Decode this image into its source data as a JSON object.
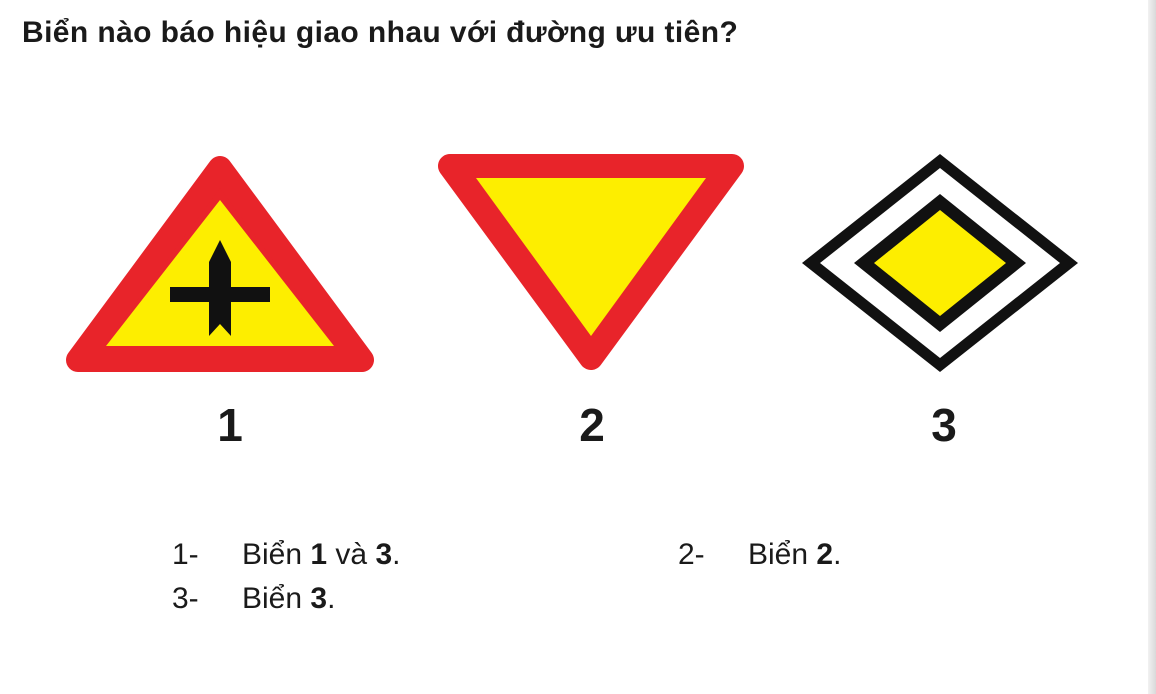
{
  "question": "Biển nào báo hiệu giao nhau với đường ưu tiên?",
  "signs": [
    {
      "number": "1",
      "icon": "crossroad-priority-warning-sign-icon",
      "colors": {
        "border": "#e8242a",
        "fill": "#fdee00",
        "symbol": "#111111"
      }
    },
    {
      "number": "2",
      "icon": "give-way-sign-icon",
      "colors": {
        "border": "#e8242a",
        "fill": "#fdee00"
      }
    },
    {
      "number": "3",
      "icon": "priority-road-sign-icon",
      "colors": {
        "border": "#111111",
        "fill": "#fdee00",
        "background": "#ffffff"
      }
    }
  ],
  "answers": [
    {
      "num": "1-",
      "text_before": "Biển ",
      "bold1": "1",
      "text_mid": " và ",
      "bold2": "3",
      "text_after": "."
    },
    {
      "num": "2-",
      "text_before": "Biển ",
      "bold1": "2",
      "text_after": "."
    },
    {
      "num": "3-",
      "text_before": "Biển ",
      "bold1": "3",
      "text_after": "."
    }
  ]
}
